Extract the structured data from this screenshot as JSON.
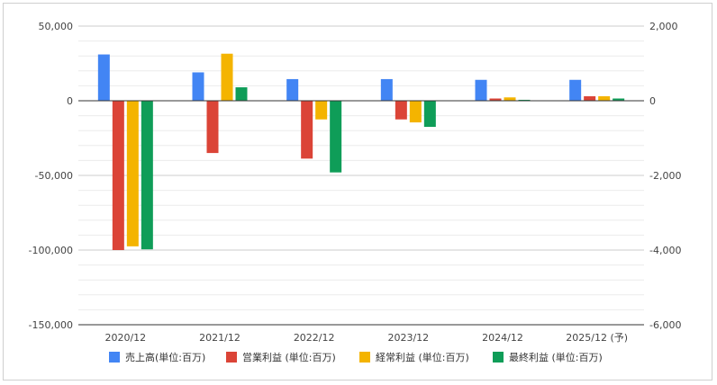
{
  "chart_data": {
    "type": "bar",
    "categories": [
      "2020/12",
      "2021/12",
      "2022/12",
      "2023/12",
      "2024/12",
      "2025/12 (予)"
    ],
    "series": [
      {
        "name": "売上高(単位:百万)",
        "axis": "left",
        "color": "#4285f4",
        "values": [
          31000,
          19000,
          14500,
          14500,
          14000,
          14000
        ]
      },
      {
        "name": "営業利益 (単位:百万)",
        "axis": "right",
        "color": "#db4437",
        "values": [
          -4000,
          -1400,
          -1550,
          -500,
          60,
          120
        ]
      },
      {
        "name": "経常利益 (単位:百万)",
        "axis": "right",
        "color": "#f4b400",
        "values": [
          -3900,
          1260,
          -500,
          -580,
          90,
          120
        ]
      },
      {
        "name": "最終利益 (単位:百万)",
        "axis": "right",
        "color": "#0f9d58",
        "values": [
          -3980,
          360,
          -1920,
          -700,
          25,
          60
        ]
      }
    ],
    "y_left": {
      "range": [
        -150000,
        50000
      ],
      "ticks": [
        50000,
        0,
        -50000,
        -100000,
        -150000
      ],
      "tick_labels": [
        "50,000",
        "0",
        "-50,000",
        "-100,000",
        "-150,000"
      ]
    },
    "y_right": {
      "range": [
        -6000,
        2000
      ],
      "ticks": [
        2000,
        0,
        -2000,
        -4000,
        -6000
      ],
      "tick_labels": [
        "2,000",
        "0",
        "-2,000",
        "-4,000",
        "-6,000"
      ]
    },
    "grid": true,
    "legend_position": "bottom",
    "title": "",
    "xlabel": "",
    "ylabel": ""
  }
}
